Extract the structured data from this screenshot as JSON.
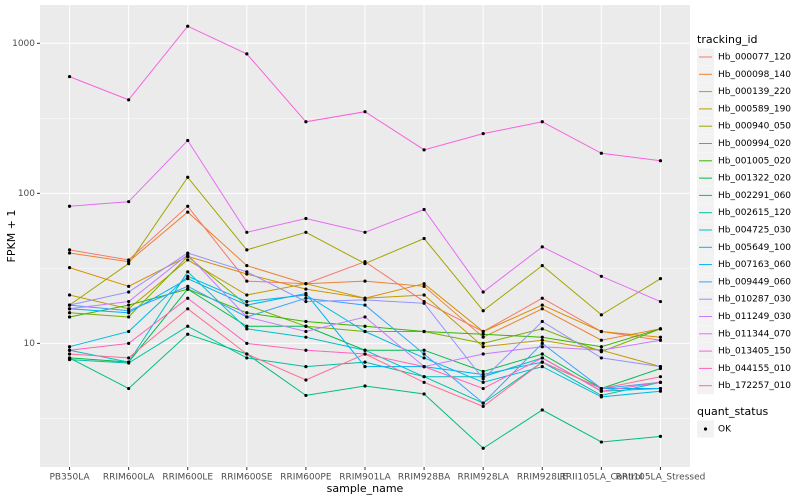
{
  "chart_data": {
    "type": "line",
    "log_y": true,
    "grid": true,
    "x_label": "sample_name",
    "y_label": "FPKM + 1",
    "categories": [
      "PB350LA",
      "RRIM600LA",
      "RRIM600LE",
      "RRIM600SE",
      "RRIM600PE",
      "RRIM901LA",
      "RRIM928BA",
      "RRIM928LA",
      "RRIM928LE",
      "RRII105LA_Control",
      "RRII105LA_Stressed"
    ],
    "ylim": [
      1.5,
      1800
    ],
    "yticks": [
      10,
      100,
      1000
    ],
    "legend_title": "tracking_id",
    "point_legend": {
      "title": "quant_status",
      "labels": [
        "OK"
      ]
    },
    "series": [
      {
        "name": "Hb_000077_120",
        "color": "#F8766D",
        "values": [
          42,
          36,
          82,
          26,
          25,
          35,
          19,
          12,
          20,
          12,
          10.5
        ]
      },
      {
        "name": "Hb_000098_140",
        "color": "#EA8331",
        "values": [
          40,
          35,
          75,
          33,
          25,
          26,
          24,
          11,
          17,
          10.5,
          12.5
        ]
      },
      {
        "name": "Hb_000139_220",
        "color": "#D89000",
        "values": [
          32,
          24,
          38,
          29,
          23,
          20,
          25,
          12,
          18,
          12,
          11
        ]
      },
      {
        "name": "Hb_000589_190",
        "color": "#C09B00",
        "values": [
          21,
          17,
          36,
          21,
          25,
          20,
          21,
          9.5,
          10.5,
          9,
          7
        ]
      },
      {
        "name": "Hb_000940_050",
        "color": "#A3A500",
        "values": [
          18,
          34,
          128,
          42,
          55,
          34,
          50,
          16.5,
          33,
          15.5,
          27
        ]
      },
      {
        "name": "Hb_000994_020",
        "color": "#7CAE00",
        "values": [
          16,
          15,
          38,
          18,
          13,
          12,
          12,
          10,
          12.5,
          8.8,
          12.5
        ]
      },
      {
        "name": "Hb_001005_020",
        "color": "#39B600",
        "values": [
          15,
          18,
          23,
          16,
          14,
          13,
          12,
          11.5,
          11,
          9.5,
          12.5
        ]
      },
      {
        "name": "Hb_001322_020",
        "color": "#00BB4E",
        "values": [
          8,
          7.5,
          23,
          13,
          13,
          9,
          9,
          6.5,
          8.5,
          5,
          6.8
        ]
      },
      {
        "name": "Hb_002291_060",
        "color": "#00BF7D",
        "values": [
          8,
          5,
          11.5,
          8.5,
          4.5,
          5.2,
          4.6,
          2,
          3.6,
          2.2,
          2.4
        ]
      },
      {
        "name": "Hb_002615_120",
        "color": "#00C1A3",
        "values": [
          7.8,
          7.4,
          13,
          8,
          7,
          7.5,
          6,
          4,
          7.5,
          4.5,
          5.5
        ]
      },
      {
        "name": "Hb_004725_030",
        "color": "#00BFC4",
        "values": [
          9,
          7.5,
          30,
          12.5,
          11,
          9,
          6,
          6,
          8,
          4.8,
          5
        ]
      },
      {
        "name": "Hb_005649_100",
        "color": "#00BAE0",
        "values": [
          9.5,
          12,
          28,
          19,
          21,
          12,
          8,
          5.5,
          7,
          4.4,
          4.8
        ]
      },
      {
        "name": "Hb_007163_060",
        "color": "#00B0F6",
        "values": [
          17,
          16,
          27,
          18,
          21.5,
          7,
          7,
          6.2,
          7.5,
          5,
          5
        ]
      },
      {
        "name": "Hb_009449_060",
        "color": "#35A2FF",
        "values": [
          18,
          16.5,
          24,
          15,
          20,
          18,
          8.5,
          4,
          10,
          5,
          5.5
        ]
      },
      {
        "name": "Hb_010287_030",
        "color": "#9590FF",
        "values": [
          18,
          22,
          40,
          30,
          19,
          19.5,
          18.5,
          5.8,
          14,
          8,
          7
        ]
      },
      {
        "name": "Hb_011249_030",
        "color": "#C77CFF",
        "values": [
          17,
          19,
          39,
          15,
          12,
          15,
          7,
          8.5,
          9.5,
          9,
          10.5
        ]
      },
      {
        "name": "Hb_011344_070",
        "color": "#E76BF3",
        "values": [
          82,
          88,
          225,
          55,
          68,
          55,
          78,
          22,
          44,
          28,
          19
        ]
      },
      {
        "name": "Hb_013405_150",
        "color": "#FA62DB",
        "values": [
          600,
          420,
          1300,
          850,
          300,
          350,
          195,
          250,
          300,
          185,
          165
        ]
      },
      {
        "name": "Hb_044155_010",
        "color": "#FF62BC",
        "values": [
          9,
          10,
          20,
          10,
          9,
          8.5,
          7,
          5,
          8,
          4.8,
          5.5
        ]
      },
      {
        "name": "Hb_172257_010",
        "color": "#FF6C91",
        "values": [
          8.5,
          8,
          17,
          8.5,
          5.7,
          8.5,
          5.5,
          3.8,
          7.5,
          5,
          6
        ]
      }
    ]
  }
}
